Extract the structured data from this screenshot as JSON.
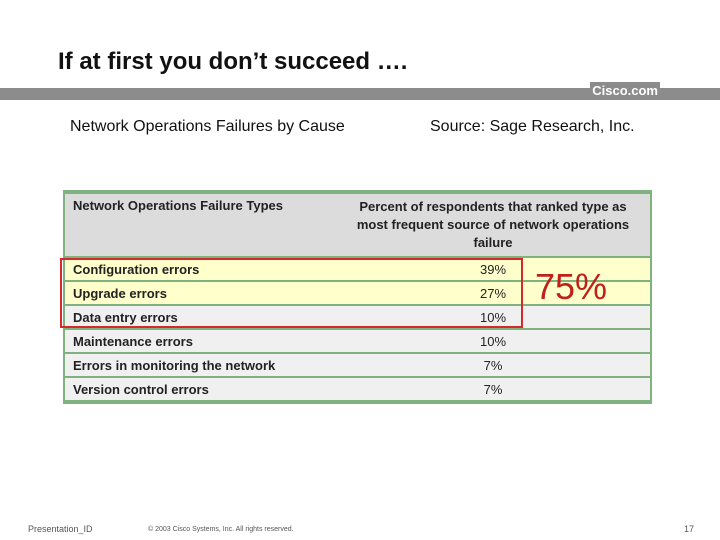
{
  "header": {
    "title": "If at first you don’t succeed ….",
    "brand": "Cisco.com"
  },
  "subtitle": "Network Operations Failures by Cause",
  "source": "Source: Sage Research, Inc.",
  "table": {
    "columns": [
      "Network Operations Failure Types",
      "Percent of respondents that ranked type as most frequent source of network operations failure"
    ],
    "rows": [
      [
        "Configuration errors",
        "39%"
      ],
      [
        "Upgrade errors",
        "27%"
      ],
      [
        "Data entry errors",
        "10%"
      ],
      [
        "Maintenance errors",
        "10%"
      ],
      [
        "Errors in monitoring the network",
        "7%"
      ],
      [
        "Version control errors",
        "7%"
      ]
    ]
  },
  "highlight": "75%",
  "footer": {
    "id": "Presentation_ID",
    "copyright": "© 2003 Cisco Systems, Inc. All rights reserved.",
    "page": "17"
  }
}
